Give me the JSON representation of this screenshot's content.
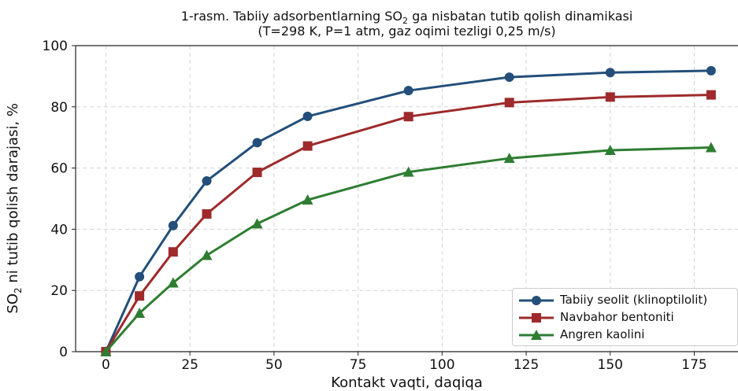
{
  "chart_data": {
    "type": "line",
    "title_line1_prefix": "1-rasm. Tabiiy adsorbentlarning SO",
    "title_line1_sub": "2",
    "title_line1_suffix": " ga nisbatan tutib qolish dinamikasi",
    "title_line2": "(T=298 K, P=1 atm, gaz oqimi tezligi 0,25 m/s)",
    "xlabel": "Kontakt vaqti, daqiqa",
    "ylabel_prefix": "SO",
    "ylabel_sub": "2",
    "ylabel_suffix": " ni tutib qolish darajasi, %",
    "xlim": [
      -9,
      188
    ],
    "ylim": [
      0,
      100
    ],
    "xticks": [
      0,
      25,
      50,
      75,
      100,
      125,
      150,
      175
    ],
    "yticks": [
      0,
      20,
      40,
      60,
      80,
      100
    ],
    "grid": true,
    "legend_position": "bottom-right",
    "x": [
      0,
      10,
      20,
      30,
      45,
      60,
      90,
      120,
      150,
      180
    ],
    "series": [
      {
        "name": "Tabiiy seolit (klinoptilolit)",
        "color": "#234f7a",
        "marker": "circle",
        "values": [
          0,
          24.5,
          41.2,
          55.8,
          68.3,
          76.9,
          85.3,
          89.7,
          91.2,
          91.8
        ]
      },
      {
        "name": "Navbahor bentoniti",
        "color": "#9e2a2b",
        "marker": "square",
        "values": [
          0,
          18.2,
          32.6,
          45.0,
          58.6,
          67.2,
          76.8,
          81.4,
          83.2,
          83.9
        ]
      },
      {
        "name": "Angren kaolini",
        "color": "#2e7d32",
        "marker": "triangle",
        "values": [
          0,
          12.6,
          22.5,
          31.5,
          41.8,
          49.6,
          58.7,
          63.2,
          65.8,
          66.7
        ]
      }
    ]
  }
}
